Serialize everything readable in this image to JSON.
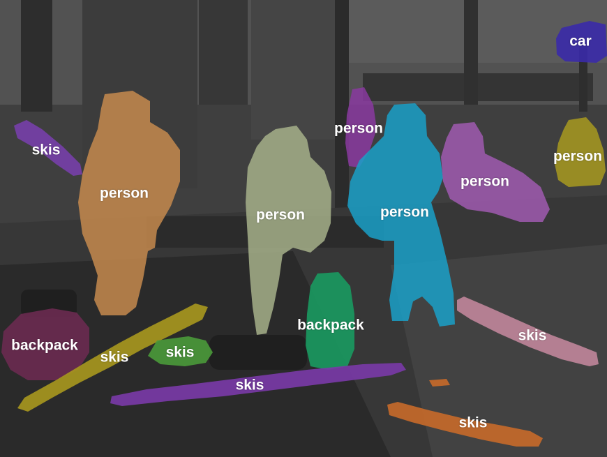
{
  "image": {
    "description_colors": {
      "ground": "#5a5a5a",
      "ground_dark": "#3b3b3b",
      "sky_snow": "#8b8b8b",
      "pole": "#4e4e4e"
    },
    "masks": [
      {
        "id": "skis-top-left",
        "label": "skis",
        "color": "#7a3fb0"
      },
      {
        "id": "person-orange",
        "label": "person",
        "color": "#c58a4e"
      },
      {
        "id": "person-sage",
        "label": "person",
        "color": "#a6b08a"
      },
      {
        "id": "person-purple-top",
        "label": "person",
        "color": "#8a3aa0"
      },
      {
        "id": "person-cyan",
        "label": "person",
        "color": "#1aa0c8"
      },
      {
        "id": "person-pink",
        "label": "person",
        "color": "#a05ab0"
      },
      {
        "id": "person-olive",
        "label": "person",
        "color": "#a89a20"
      },
      {
        "id": "car",
        "label": "car",
        "color": "#3a2aa8"
      },
      {
        "id": "backpack-left",
        "label": "backpack",
        "color": "#6a2a50"
      },
      {
        "id": "backpack-green",
        "label": "backpack",
        "color": "#1a9a60"
      },
      {
        "id": "skis-yellow",
        "label": "skis",
        "color": "#a8981e"
      },
      {
        "id": "skis-green",
        "label": "skis",
        "color": "#4a9a3a"
      },
      {
        "id": "skis-purple",
        "label": "skis",
        "color": "#7a3aa8"
      },
      {
        "id": "skis-pink",
        "label": "skis",
        "color": "#c88aa0"
      },
      {
        "id": "skis-orange",
        "label": "skis",
        "color": "#c86a2a"
      }
    ]
  }
}
